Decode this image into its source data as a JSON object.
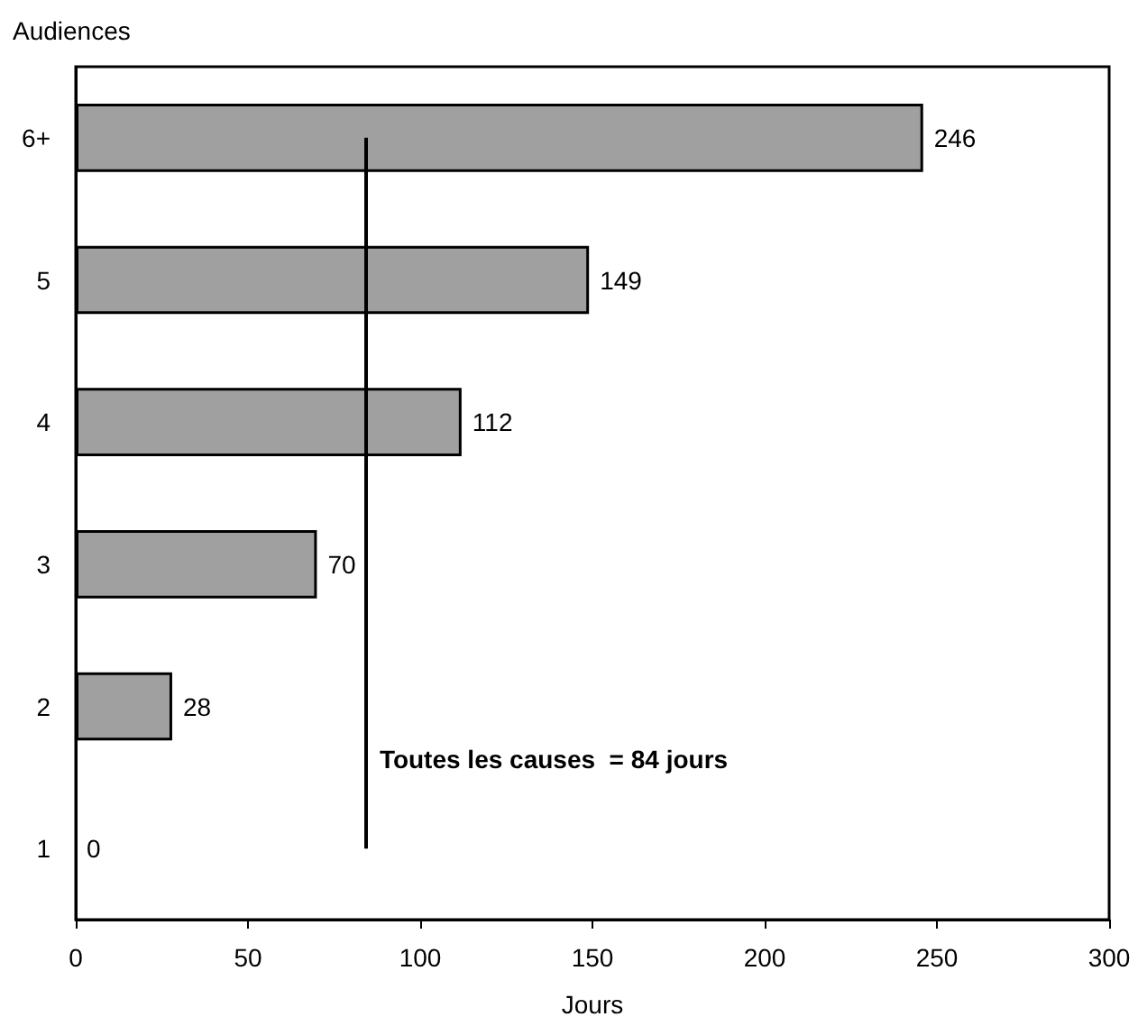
{
  "chart_data": {
    "type": "bar",
    "orientation": "horizontal",
    "xlabel": "Jours",
    "ylabel": "Audiences",
    "categories": [
      "6+",
      "5",
      "4",
      "3",
      "2",
      "1"
    ],
    "values": [
      246,
      149,
      112,
      70,
      28,
      0
    ],
    "color": "#a0a0a0",
    "xlim": [
      0,
      300
    ],
    "xticks": [
      0,
      50,
      100,
      150,
      200,
      250,
      300
    ],
    "data_labels": true,
    "grid": false,
    "ref_lines": [
      {
        "axis": "x",
        "value": 84,
        "label": "Toutes les causes  = 84 jours",
        "color": "#000000"
      }
    ]
  }
}
